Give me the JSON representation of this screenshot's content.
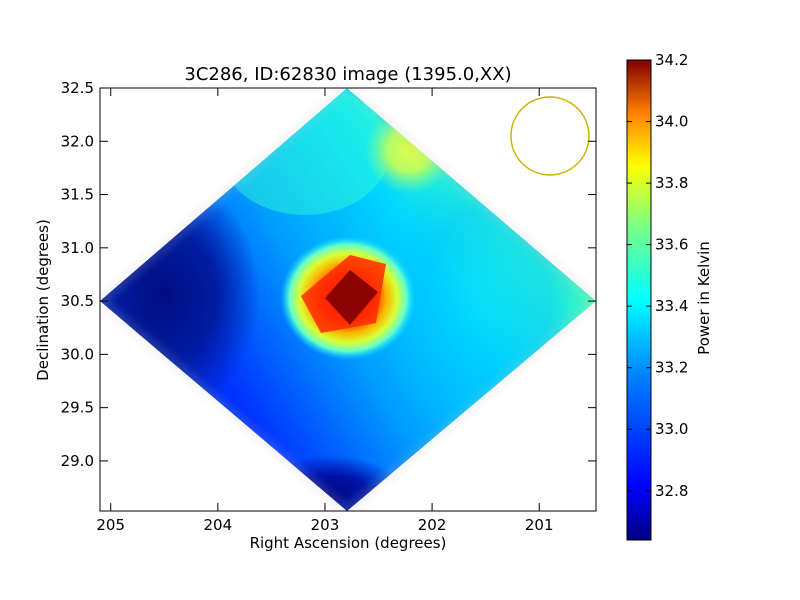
{
  "chart_data": {
    "type": "heatmap",
    "title": "3C286, ID:62830 image (1395.0,XX)",
    "xlabel": "Right Ascension (degrees)",
    "ylabel": "Declination (degrees)",
    "x_ticks": [
      "205",
      "204",
      "203",
      "202",
      "201"
    ],
    "y_ticks": [
      "32.5",
      "32.0",
      "31.5",
      "31.0",
      "30.5",
      "30.0",
      "29.5",
      "29.0"
    ],
    "x_tick_values": [
      205,
      204,
      203,
      202,
      201
    ],
    "y_tick_values": [
      32.5,
      32.0,
      31.5,
      31.0,
      30.5,
      30.0,
      29.5,
      29.0
    ],
    "xlim": [
      205.1,
      200.47
    ],
    "ylim": [
      28.53,
      32.5
    ],
    "colorbar": {
      "label": "Power in Kelvin",
      "min": 32.64,
      "max": 34.2,
      "ticks": [
        "32.8",
        "33.0",
        "33.2",
        "33.4",
        "33.6",
        "33.8",
        "34.0",
        "34.2"
      ],
      "tick_values": [
        32.8,
        33.0,
        33.2,
        33.4,
        33.6,
        33.8,
        34.0,
        34.2
      ],
      "colormap": "jet"
    },
    "image": {
      "shape": "rotated-square",
      "center": [
        202.7,
        30.5
      ],
      "top_vertex": [
        202.7,
        32.5
      ],
      "right_vertex": [
        200.55,
        30.5
      ],
      "bottom_vertex": [
        202.7,
        28.53
      ],
      "left_vertex": [
        204.95,
        30.5
      ],
      "values": [
        {
          "ra": 202.7,
          "dec": 30.5,
          "value": 34.2
        },
        {
          "ra": 202.45,
          "dec": 30.72,
          "value": 33.95
        },
        {
          "ra": 202.95,
          "dec": 30.3,
          "value": 33.8
        },
        {
          "ra": 202.2,
          "dec": 31.88,
          "value": 33.6
        },
        {
          "ra": 201.2,
          "dec": 30.55,
          "value": 33.45
        },
        {
          "ra": 202.3,
          "dec": 29.4,
          "value": 33.1
        },
        {
          "ra": 204.2,
          "dec": 31.6,
          "value": 32.85
        },
        {
          "ra": 204.7,
          "dec": 30.55,
          "value": 32.68
        },
        {
          "ra": 202.8,
          "dec": 28.75,
          "value": 32.7
        }
      ]
    },
    "beam": {
      "ra": 200.9,
      "dec": 32.05,
      "color": "#c8b400"
    },
    "colors": {
      "frame": "#000000",
      "title": "#000000"
    }
  }
}
